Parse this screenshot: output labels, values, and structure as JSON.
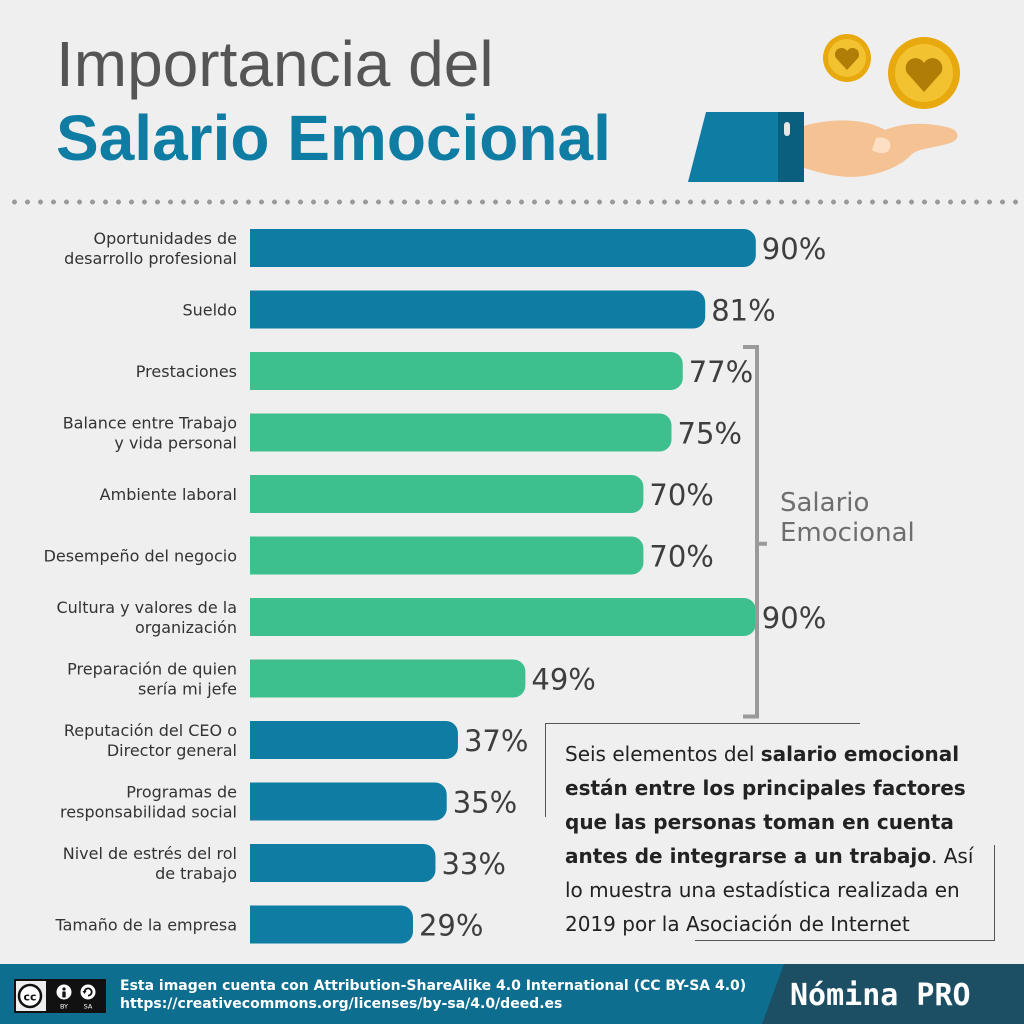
{
  "title_line1": "Importancia del",
  "title_line2": "Salario Emocional",
  "bracket_label": "Salario\nEmocional",
  "note": {
    "bold": "salario emocional están entre los principales factores que las personas toman en cuenta antes de integrarse a un trabajo",
    "intro": "Seis elementos del ",
    "tail1": ".",
    "tail2": " Así lo muestra una estadística realizada en 2019 por la Asociación de Internet"
  },
  "footer": {
    "line1": "Esta imagen cuenta con Attribution-ShareAlike 4.0 International (CC BY-SA 4.0)",
    "line2": "https://creativecommons.org/licenses/by-sa/4.0/deed.es",
    "brand": "Nómina PRO",
    "cc_left": "BY",
    "cc_right": "SA"
  },
  "colors": {
    "blue": "#0e7ca3",
    "green": "#3dbf8e",
    "title_gray": "#555555",
    "coin": "#e8a90f"
  },
  "chart_data": {
    "type": "bar",
    "orientation": "horizontal",
    "categories": [
      "Oportunidades de\ndesarrollo profesional",
      "Sueldo",
      "Prestaciones",
      "Balance entre Trabajo\ny vida personal",
      "Ambiente laboral",
      "Desempeño del negocio",
      "Cultura y valores de la\norganización",
      "Preparación de quien\nsería mi jefe",
      "Reputación del CEO o\nDirector general",
      "Programas de\nresponsabilidad social",
      "Nivel de estrés del rol\nde trabajo",
      "Tamaño de la empresa"
    ],
    "values": [
      90,
      81,
      77,
      75,
      70,
      70,
      90,
      49,
      37,
      35,
      33,
      29
    ],
    "value_labels": [
      "90%",
      "81%",
      "77%",
      "75%",
      "70%",
      "70%",
      "90%",
      "49%",
      "37%",
      "35%",
      "33%",
      "29%"
    ],
    "groups": [
      "other",
      "other",
      "emocional",
      "emocional",
      "emocional",
      "emocional",
      "emocional",
      "emocional",
      "other",
      "other",
      "other",
      "other"
    ],
    "group_colors": {
      "other": "#0e7ca3",
      "emocional": "#3dbf8e"
    }
  }
}
